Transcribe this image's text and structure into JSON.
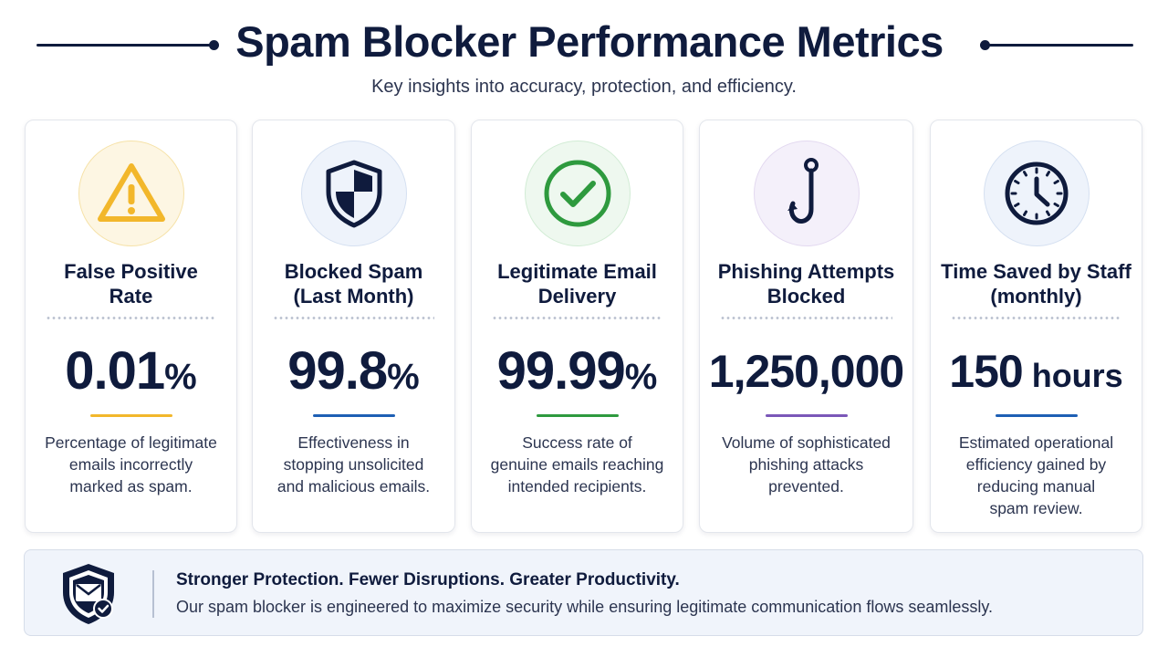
{
  "header": {
    "title": "Spam Blocker Performance Metrics",
    "subtitle": "Key insights into accuracy, protection, and efficiency."
  },
  "cards": [
    {
      "title_line1": "False Positive",
      "title_line2": "Rate",
      "value": "0.01",
      "unit": "%",
      "accent": "#f2b72b",
      "icon": "warning-icon",
      "desc_line1": "Percentage of legitimate",
      "desc_line2": "emails incorrectly",
      "desc_line3": "marked as spam.",
      "desc_line4": ""
    },
    {
      "title_line1": "Blocked Spam",
      "title_line2": "(Last Month)",
      "value": "99.8",
      "unit": "%",
      "accent": "#1e5fb4",
      "icon": "shield-icon",
      "desc_line1": "Effectiveness in",
      "desc_line2": "stopping unsolicited",
      "desc_line3": "and malicious emails.",
      "desc_line4": ""
    },
    {
      "title_line1": "Legitimate Email",
      "title_line2": "Delivery",
      "value": "99.99",
      "unit": "%",
      "accent": "#2e9a3e",
      "icon": "checkmark-icon",
      "desc_line1": "Success rate of",
      "desc_line2": "genuine emails reaching",
      "desc_line3": "intended recipients.",
      "desc_line4": ""
    },
    {
      "title_line1": "Phishing Attempts",
      "title_line2": "Blocked",
      "value": "1,250,000",
      "unit": "",
      "accent": "#7b57b8",
      "icon": "fishing-hook-icon",
      "desc_line1": "Volume of sophisticated",
      "desc_line2": "phishing attacks",
      "desc_line3": "prevented.",
      "desc_line4": ""
    },
    {
      "title_line1": "Time Saved by Staff",
      "title_line2": "(monthly)",
      "value": "150",
      "unit": " hours",
      "accent": "#1e5fb4",
      "icon": "clock-icon",
      "desc_line1": "Estimated operational",
      "desc_line2": "efficiency gained by",
      "desc_line3": "reducing manual",
      "desc_line4": "spam review."
    }
  ],
  "footer": {
    "icon": "shield-envelope-check-icon",
    "heading": "Stronger Protection. Fewer Disruptions. Greater Productivity.",
    "text": "Our spam blocker is engineered to maximize security while ensuring legitimate communication flows seamlessly."
  },
  "colors": {
    "navy": "#0f1b3d",
    "text": "#2c3550",
    "footer_bg": "#f0f4fb"
  }
}
